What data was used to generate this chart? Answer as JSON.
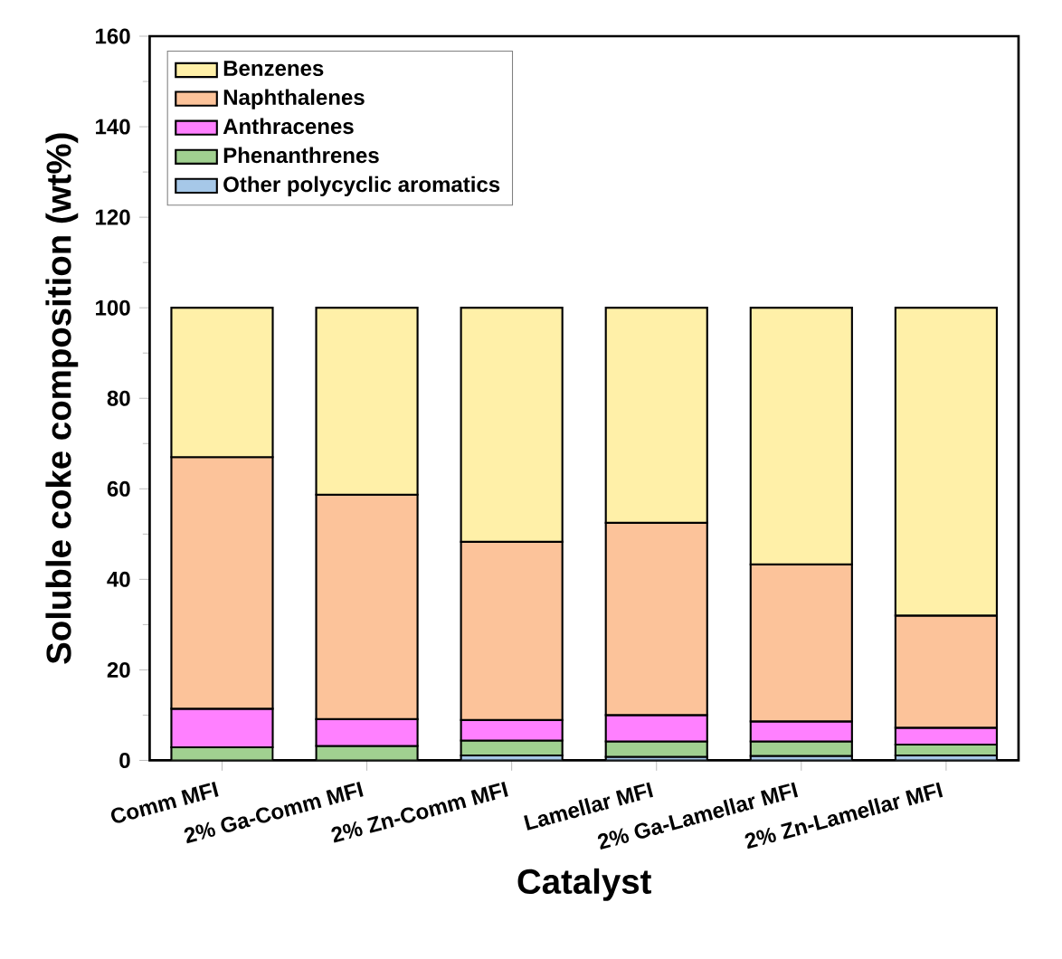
{
  "chart_data": {
    "type": "bar",
    "stacked": true,
    "xlabel": "Catalyst",
    "ylabel": "Soluble coke composition (wt%)",
    "categories": [
      "Comm MFI",
      "2% Ga-Comm MFI",
      "2% Zn-Comm MFI",
      "Lamellar MFI",
      "2% Ga-Lamellar MFI",
      "2% Zn-Lamellar MFI"
    ],
    "series": [
      {
        "name": "Other polycyclic aromatics",
        "color": "#a6c8e8",
        "values": [
          null,
          null,
          1.1,
          0.8,
          1.0,
          1.1
        ]
      },
      {
        "name": "Phenanthrenes",
        "color": "#a0d090",
        "values": [
          2.9,
          3.2,
          3.3,
          3.4,
          3.2,
          2.4
        ]
      },
      {
        "name": "Anthracenes",
        "color": "#ff80ff",
        "values": [
          8.5,
          5.9,
          4.5,
          5.8,
          4.4,
          3.7
        ]
      },
      {
        "name": "Naphthalenes",
        "color": "#fcc39a",
        "values": [
          55.6,
          49.6,
          39.4,
          42.5,
          34.7,
          24.8
        ]
      },
      {
        "name": "Benzenes",
        "color": "#fff0a8",
        "values": [
          33.0,
          41.3,
          51.7,
          47.5,
          56.7,
          68.0
        ]
      }
    ],
    "ylim": [
      0,
      160
    ],
    "yticks": [
      0,
      20,
      40,
      60,
      80,
      100,
      120,
      140,
      160
    ],
    "legend": "top left",
    "grid": false
  }
}
